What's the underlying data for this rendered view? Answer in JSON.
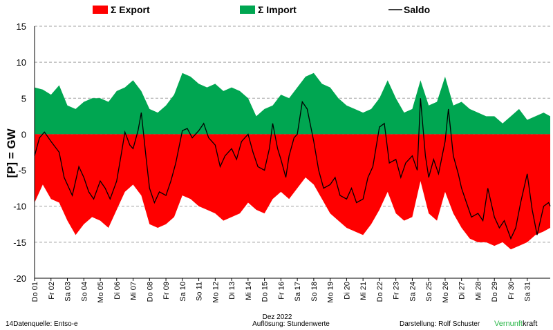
{
  "legend": {
    "export_label": "Σ Export",
    "import_label": "Σ Import",
    "saldo_label": "Saldo"
  },
  "footer": {
    "source": "14Datenquelle: Entso-e",
    "month": "Dez 2022",
    "resolution": "Auflösung: Stundenwerte",
    "author": "Darstellung:  Rolf Schuster",
    "brand_green": "Vernunft",
    "brand_black": "kraft"
  },
  "colors": {
    "export": "#ff0000",
    "import": "#00a651",
    "saldo": "#000000",
    "grid": "#a0a0a0",
    "brand": "#2db84b"
  },
  "chart_data": {
    "type": "area",
    "ylabel": "[P]  = GW",
    "xlabel": "Dez 2022",
    "ylim": [
      -20,
      15
    ],
    "yticks": [
      -20,
      -15,
      -10,
      -5,
      0,
      5,
      10,
      15
    ],
    "grid": true,
    "legend_position": "top",
    "x": [
      "Do 01",
      "Fr 02",
      "Sa 03",
      "So 04",
      "Mo 05",
      "Di 06",
      "Mi 07",
      "Do 08",
      "Fr 09",
      "Sa 10",
      "So 11",
      "Mo 12",
      "Di 13",
      "Mi 14",
      "Do 15",
      "Fr 16",
      "Sa 17",
      "So 18",
      "Mo 19",
      "Di 20",
      "Mi 21",
      "Do 22",
      "Fr 23",
      "Sa 24",
      "So 25",
      "Mo 26",
      "Di 27",
      "Mi 28",
      "Do 29",
      "Fr 30",
      "Sa 31"
    ],
    "series": [
      {
        "name": "Σ Import",
        "values": [
          [
            0,
            6.5
          ],
          [
            0.5,
            6.2
          ],
          [
            1,
            5.5
          ],
          [
            1.5,
            6.8
          ],
          [
            2,
            4.0
          ],
          [
            2.5,
            3.5
          ],
          [
            3,
            4.5
          ],
          [
            3.5,
            5.0
          ],
          [
            4,
            5.0
          ],
          [
            4.5,
            4.5
          ],
          [
            5,
            6.0
          ],
          [
            5.5,
            6.5
          ],
          [
            6,
            7.5
          ],
          [
            6.5,
            6.0
          ],
          [
            7,
            3.5
          ],
          [
            7.5,
            3.0
          ],
          [
            8,
            4.0
          ],
          [
            8.5,
            5.5
          ],
          [
            9,
            8.5
          ],
          [
            9.5,
            8.0
          ],
          [
            10,
            7.0
          ],
          [
            10.5,
            6.5
          ],
          [
            11,
            7.0
          ],
          [
            11.5,
            6.0
          ],
          [
            12,
            6.5
          ],
          [
            12.5,
            6.0
          ],
          [
            13,
            5.0
          ],
          [
            13.5,
            2.5
          ],
          [
            14,
            3.5
          ],
          [
            14.5,
            4.0
          ],
          [
            15,
            5.5
          ],
          [
            15.5,
            5.0
          ],
          [
            16,
            6.5
          ],
          [
            16.5,
            8.0
          ],
          [
            17,
            8.5
          ],
          [
            17.5,
            7.0
          ],
          [
            18,
            6.5
          ],
          [
            18.5,
            5.0
          ],
          [
            19,
            4.0
          ],
          [
            19.5,
            3.5
          ],
          [
            20,
            3.0
          ],
          [
            20.5,
            3.5
          ],
          [
            21,
            5.0
          ],
          [
            21.5,
            7.5
          ],
          [
            22,
            5.0
          ],
          [
            22.5,
            3.0
          ],
          [
            23,
            3.5
          ],
          [
            23.5,
            7.5
          ],
          [
            24,
            4.0
          ],
          [
            24.5,
            4.5
          ],
          [
            25,
            8.0
          ],
          [
            25.5,
            4.0
          ],
          [
            26,
            4.5
          ],
          [
            26.5,
            3.5
          ],
          [
            27,
            3.0
          ],
          [
            27.5,
            2.5
          ],
          [
            28,
            2.5
          ],
          [
            28.5,
            1.5
          ],
          [
            29,
            2.5
          ],
          [
            29.5,
            3.5
          ],
          [
            30,
            2.0
          ],
          [
            30.5,
            2.5
          ],
          [
            31,
            3.0
          ],
          [
            31.4,
            2.5
          ]
        ]
      },
      {
        "name": "Σ Export",
        "values": [
          [
            0,
            -9.5
          ],
          [
            0.5,
            -7.0
          ],
          [
            1,
            -9.0
          ],
          [
            1.5,
            -9.5
          ],
          [
            2,
            -12.0
          ],
          [
            2.5,
            -14.0
          ],
          [
            3,
            -12.5
          ],
          [
            3.5,
            -11.5
          ],
          [
            4,
            -12.0
          ],
          [
            4.5,
            -13.0
          ],
          [
            5,
            -10.5
          ],
          [
            5.5,
            -8.0
          ],
          [
            6,
            -7.0
          ],
          [
            6.5,
            -8.5
          ],
          [
            7,
            -12.5
          ],
          [
            7.5,
            -13.0
          ],
          [
            8,
            -12.5
          ],
          [
            8.5,
            -11.5
          ],
          [
            9,
            -8.5
          ],
          [
            9.5,
            -9.0
          ],
          [
            10,
            -10.0
          ],
          [
            10.5,
            -10.5
          ],
          [
            11,
            -11.0
          ],
          [
            11.5,
            -12.0
          ],
          [
            12,
            -11.5
          ],
          [
            12.5,
            -11.0
          ],
          [
            13,
            -9.5
          ],
          [
            13.5,
            -10.5
          ],
          [
            14,
            -11.0
          ],
          [
            14.5,
            -9.0
          ],
          [
            15,
            -8.0
          ],
          [
            15.5,
            -9.0
          ],
          [
            16,
            -7.5
          ],
          [
            16.5,
            -6.0
          ],
          [
            17,
            -7.0
          ],
          [
            17.5,
            -9.0
          ],
          [
            18,
            -11.0
          ],
          [
            18.5,
            -12.0
          ],
          [
            19,
            -13.0
          ],
          [
            19.5,
            -13.5
          ],
          [
            20,
            -14.0
          ],
          [
            20.5,
            -12.5
          ],
          [
            21,
            -10.5
          ],
          [
            21.5,
            -8.0
          ],
          [
            22,
            -11.0
          ],
          [
            22.5,
            -12.0
          ],
          [
            23,
            -11.5
          ],
          [
            23.5,
            -6.5
          ],
          [
            24,
            -11.0
          ],
          [
            24.5,
            -12.0
          ],
          [
            25,
            -8.0
          ],
          [
            25.5,
            -11.0
          ],
          [
            26,
            -13.0
          ],
          [
            26.5,
            -14.5
          ],
          [
            27,
            -15.0
          ],
          [
            27.5,
            -15.0
          ],
          [
            28,
            -15.5
          ],
          [
            28.5,
            -15.0
          ],
          [
            29,
            -16.0
          ],
          [
            29.5,
            -15.5
          ],
          [
            30,
            -15.0
          ],
          [
            30.5,
            -14.0
          ],
          [
            31,
            -13.5
          ],
          [
            31.4,
            -13.0
          ]
        ]
      },
      {
        "name": "Saldo",
        "values": [
          [
            0,
            -3.0
          ],
          [
            0.3,
            -0.5
          ],
          [
            0.6,
            0.3
          ],
          [
            1,
            -1.0
          ],
          [
            1.5,
            -2.5
          ],
          [
            1.8,
            -6.0
          ],
          [
            2,
            -7.0
          ],
          [
            2.3,
            -8.5
          ],
          [
            2.5,
            -6.5
          ],
          [
            2.7,
            -4.5
          ],
          [
            3,
            -6.0
          ],
          [
            3.3,
            -8.0
          ],
          [
            3.6,
            -9.0
          ],
          [
            4,
            -6.5
          ],
          [
            4.3,
            -7.5
          ],
          [
            4.6,
            -9.0
          ],
          [
            5,
            -6.5
          ],
          [
            5.3,
            -2.5
          ],
          [
            5.5,
            0.3
          ],
          [
            5.8,
            -1.5
          ],
          [
            6,
            -2.0
          ],
          [
            6.3,
            0.5
          ],
          [
            6.5,
            3.0
          ],
          [
            6.8,
            -3.5
          ],
          [
            7,
            -7.5
          ],
          [
            7.3,
            -9.5
          ],
          [
            7.6,
            -8.0
          ],
          [
            8,
            -8.5
          ],
          [
            8.3,
            -6.5
          ],
          [
            8.6,
            -4.0
          ],
          [
            9,
            0.5
          ],
          [
            9.3,
            0.8
          ],
          [
            9.6,
            -0.5
          ],
          [
            10,
            0.5
          ],
          [
            10.3,
            1.5
          ],
          [
            10.6,
            -0.5
          ],
          [
            11,
            -1.5
          ],
          [
            11.3,
            -4.5
          ],
          [
            11.6,
            -3.0
          ],
          [
            12,
            -2.0
          ],
          [
            12.3,
            -3.5
          ],
          [
            12.6,
            -1.0
          ],
          [
            13,
            0.0
          ],
          [
            13.3,
            -2.5
          ],
          [
            13.6,
            -4.5
          ],
          [
            14,
            -5.0
          ],
          [
            14.3,
            -2.0
          ],
          [
            14.5,
            1.5
          ],
          [
            14.8,
            -2.0
          ],
          [
            15,
            -3.5
          ],
          [
            15.3,
            -6.0
          ],
          [
            15.5,
            -3.0
          ],
          [
            15.8,
            -0.5
          ],
          [
            16,
            0.0
          ],
          [
            16.3,
            4.5
          ],
          [
            16.6,
            3.5
          ],
          [
            17,
            -1.0
          ],
          [
            17.3,
            -5.0
          ],
          [
            17.6,
            -7.5
          ],
          [
            18,
            -7.0
          ],
          [
            18.3,
            -6.0
          ],
          [
            18.6,
            -8.5
          ],
          [
            19,
            -9.0
          ],
          [
            19.3,
            -7.5
          ],
          [
            19.6,
            -9.5
          ],
          [
            20,
            -9.0
          ],
          [
            20.3,
            -6.0
          ],
          [
            20.6,
            -4.5
          ],
          [
            21,
            1.0
          ],
          [
            21.3,
            1.5
          ],
          [
            21.6,
            -4.0
          ],
          [
            22,
            -3.5
          ],
          [
            22.3,
            -6.0
          ],
          [
            22.6,
            -4.0
          ],
          [
            23,
            -3.0
          ],
          [
            23.3,
            -5.0
          ],
          [
            23.5,
            5.0
          ],
          [
            23.8,
            -3.0
          ],
          [
            24,
            -6.0
          ],
          [
            24.3,
            -3.5
          ],
          [
            24.6,
            -5.5
          ],
          [
            25,
            -1.0
          ],
          [
            25.2,
            3.5
          ],
          [
            25.5,
            -3.0
          ],
          [
            25.8,
            -5.5
          ],
          [
            26,
            -7.5
          ],
          [
            26.3,
            -9.5
          ],
          [
            26.6,
            -11.5
          ],
          [
            27,
            -11.0
          ],
          [
            27.3,
            -12.0
          ],
          [
            27.6,
            -7.5
          ],
          [
            28,
            -11.5
          ],
          [
            28.3,
            -13.0
          ],
          [
            28.6,
            -12.0
          ],
          [
            29,
            -14.5
          ],
          [
            29.3,
            -13.0
          ],
          [
            29.6,
            -9.5
          ],
          [
            30,
            -5.5
          ],
          [
            30.3,
            -10.5
          ],
          [
            30.6,
            -14.0
          ],
          [
            31,
            -10.0
          ],
          [
            31.3,
            -9.5
          ],
          [
            31.4,
            -10.0
          ]
        ]
      }
    ]
  }
}
